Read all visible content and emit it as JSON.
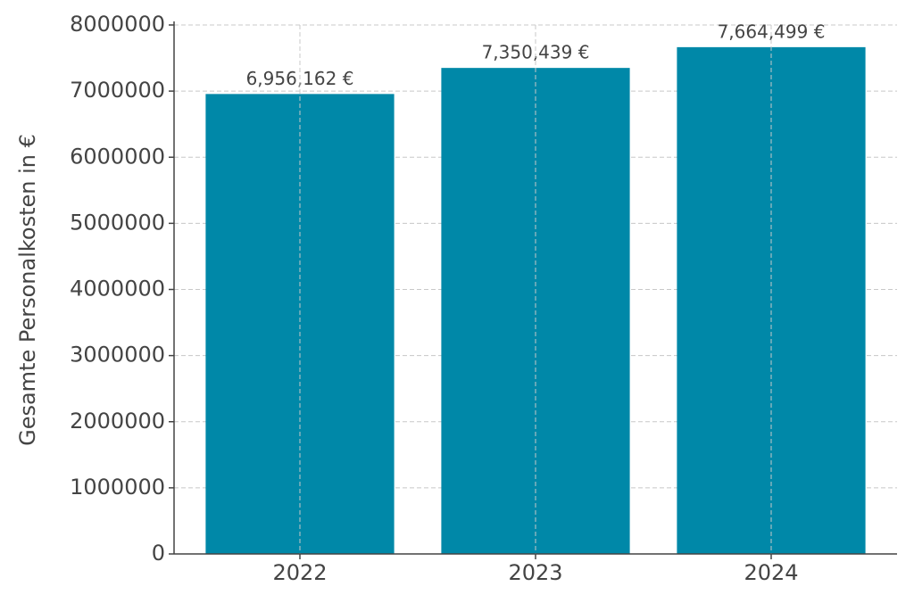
{
  "chart_data": {
    "type": "bar",
    "y_label": "Gesamte Personalkosten in €",
    "categories": [
      "2022",
      "2023",
      "2024"
    ],
    "values": [
      6956162,
      7350439,
      7664499
    ],
    "value_labels": [
      "6,956,162 €",
      "7,350,439 €",
      "7,664,499 €"
    ],
    "color": "#0088a8",
    "ylim": [
      0,
      8000000
    ],
    "yticks": [
      0,
      1000000,
      2000000,
      3000000,
      4000000,
      5000000,
      6000000,
      7000000,
      8000000
    ],
    "grid": true
  }
}
